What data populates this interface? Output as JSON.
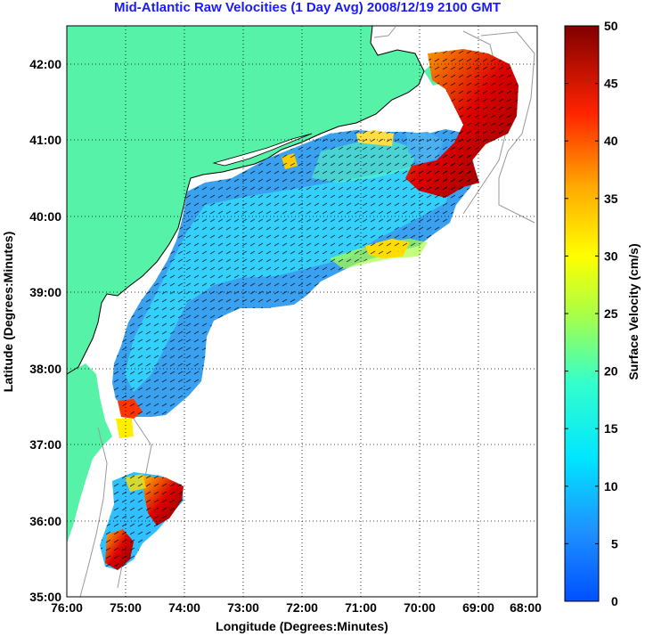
{
  "map": {
    "title": "Mid-Atlantic Raw Velocities (1 Day Avg) 2008/12/19 2100 GMT",
    "xlabel": "Longitude (Degrees:Minutes)",
    "ylabel": "Latitude (Degrees:Minutes)",
    "x_ticks": [
      "76:00",
      "75:00",
      "74:00",
      "73:00",
      "72:00",
      "71:00",
      "70:00",
      "69:00",
      "68:00"
    ],
    "y_ticks": [
      "42:00",
      "41:00",
      "40:00",
      "39:00",
      "38:00",
      "37:00",
      "36:00",
      "35:00"
    ],
    "colorbar": {
      "label": "Surface Velocity (cm/s)",
      "ticks": [
        "50",
        "45",
        "40",
        "35",
        "30",
        "25",
        "20",
        "15",
        "10",
        "5",
        "0"
      ],
      "range": [
        0,
        50
      ],
      "units": "cm/s"
    },
    "extent": {
      "lon": [
        -76,
        -68
      ],
      "lat": [
        35,
        42.5
      ]
    },
    "colors": {
      "land": "#55f2a8",
      "title": "#1a1aff",
      "bathymetry": "#999999",
      "grid": "#000000"
    }
  }
}
